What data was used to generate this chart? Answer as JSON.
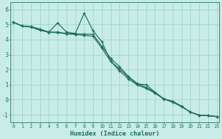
{
  "background_color": "#c8ece6",
  "grid_color": "#a0d4cc",
  "line_color": "#1e6b60",
  "xlabel": "Humidex (Indice chaleur)",
  "x_ticks": [
    0,
    1,
    2,
    3,
    4,
    5,
    6,
    7,
    8,
    9,
    10,
    11,
    12,
    13,
    14,
    15,
    16,
    17,
    18,
    19,
    20,
    21,
    22,
    23
  ],
  "y_ticks": [
    -1,
    0,
    1,
    2,
    3,
    4,
    5,
    6
  ],
  "xlim": [
    -0.3,
    23.3
  ],
  "ylim": [
    -1.5,
    6.5
  ],
  "line1_x": [
    0,
    1,
    2,
    3,
    4,
    5,
    6,
    7,
    8,
    9,
    10,
    11,
    12,
    13,
    14,
    15,
    16,
    17,
    18,
    19,
    20,
    21,
    22,
    23
  ],
  "line1_y": [
    5.15,
    4.9,
    4.85,
    4.7,
    4.5,
    5.1,
    4.5,
    4.4,
    5.75,
    4.6,
    3.85,
    2.55,
    2.05,
    1.5,
    1.05,
    1.0,
    0.5,
    0.05,
    -0.1,
    -0.42,
    -0.82,
    -1.02,
    -1.06,
    -1.12
  ],
  "line2_x": [
    0,
    1,
    2,
    3,
    4,
    5,
    6,
    7,
    8,
    9,
    10,
    11,
    12,
    13,
    14,
    15,
    16,
    17,
    18,
    19,
    20,
    21,
    22,
    23
  ],
  "line2_y": [
    5.15,
    4.9,
    4.85,
    4.65,
    4.5,
    4.5,
    4.4,
    4.38,
    4.36,
    4.35,
    3.55,
    2.75,
    2.2,
    1.55,
    1.08,
    0.82,
    0.5,
    0.06,
    -0.12,
    -0.44,
    -0.82,
    -1.02,
    -1.06,
    -1.12
  ],
  "line3_x": [
    0,
    1,
    2,
    3,
    4,
    5,
    6,
    7,
    8,
    9,
    10,
    11,
    12,
    13,
    14,
    15,
    16,
    17,
    18,
    19,
    20,
    21,
    22,
    23
  ],
  "line3_y": [
    5.15,
    4.9,
    4.82,
    4.62,
    4.48,
    4.46,
    4.38,
    4.34,
    4.28,
    4.22,
    3.42,
    2.55,
    1.92,
    1.38,
    0.98,
    0.76,
    0.44,
    0.04,
    -0.16,
    -0.46,
    -0.82,
    -1.02,
    -1.06,
    -1.12
  ]
}
